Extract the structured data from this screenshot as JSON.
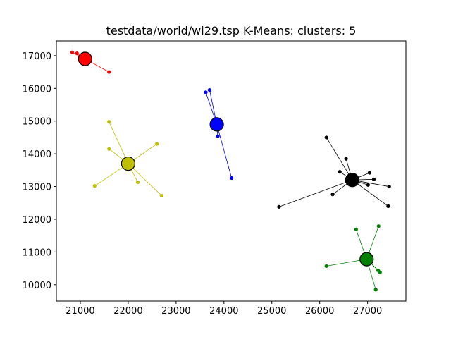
{
  "chart_data": {
    "type": "scatter",
    "title": "testdata/world/wi29.tsp K-Means: clusters: 5",
    "xlabel": "",
    "ylabel": "",
    "xlim": [
      20500,
      27800
    ],
    "ylim": [
      9500,
      17450
    ],
    "xticks": [
      21000,
      22000,
      23000,
      24000,
      25000,
      26000,
      27000
    ],
    "yticks": [
      10000,
      11000,
      12000,
      13000,
      14000,
      15000,
      16000,
      17000
    ],
    "grid": false,
    "legend": false,
    "clusters": [
      {
        "color": "#ff0000",
        "centroid": [
          21100,
          16900
        ],
        "points": [
          [
            20830,
            17100
          ],
          [
            20930,
            17070
          ],
          [
            21600,
            16500
          ]
        ]
      },
      {
        "color": "#0000ff",
        "centroid": [
          23850,
          14900
        ],
        "points": [
          [
            23620,
            15880
          ],
          [
            23700,
            15950
          ],
          [
            23870,
            14540
          ],
          [
            24160,
            13260
          ]
        ]
      },
      {
        "color": "#bfbf00",
        "centroid": [
          22000,
          13700
        ],
        "points": [
          [
            21600,
            14980
          ],
          [
            21600,
            14150
          ],
          [
            22600,
            14300
          ],
          [
            21300,
            13020
          ],
          [
            22200,
            13130
          ],
          [
            22700,
            12720
          ]
        ]
      },
      {
        "color": "#000000",
        "centroid": [
          26680,
          13200
        ],
        "points": [
          [
            26140,
            14500
          ],
          [
            26550,
            13850
          ],
          [
            26420,
            13450
          ],
          [
            27040,
            13420
          ],
          [
            27130,
            13220
          ],
          [
            27450,
            13000
          ],
          [
            27010,
            13050
          ],
          [
            26270,
            12760
          ],
          [
            27430,
            12400
          ],
          [
            25150,
            12380
          ]
        ]
      },
      {
        "color": "#008000",
        "centroid": [
          26980,
          10780
        ],
        "points": [
          [
            26760,
            11690
          ],
          [
            27230,
            11790
          ],
          [
            26140,
            10570
          ],
          [
            27220,
            10440
          ],
          [
            27260,
            10380
          ],
          [
            27170,
            9850
          ]
        ]
      }
    ]
  }
}
